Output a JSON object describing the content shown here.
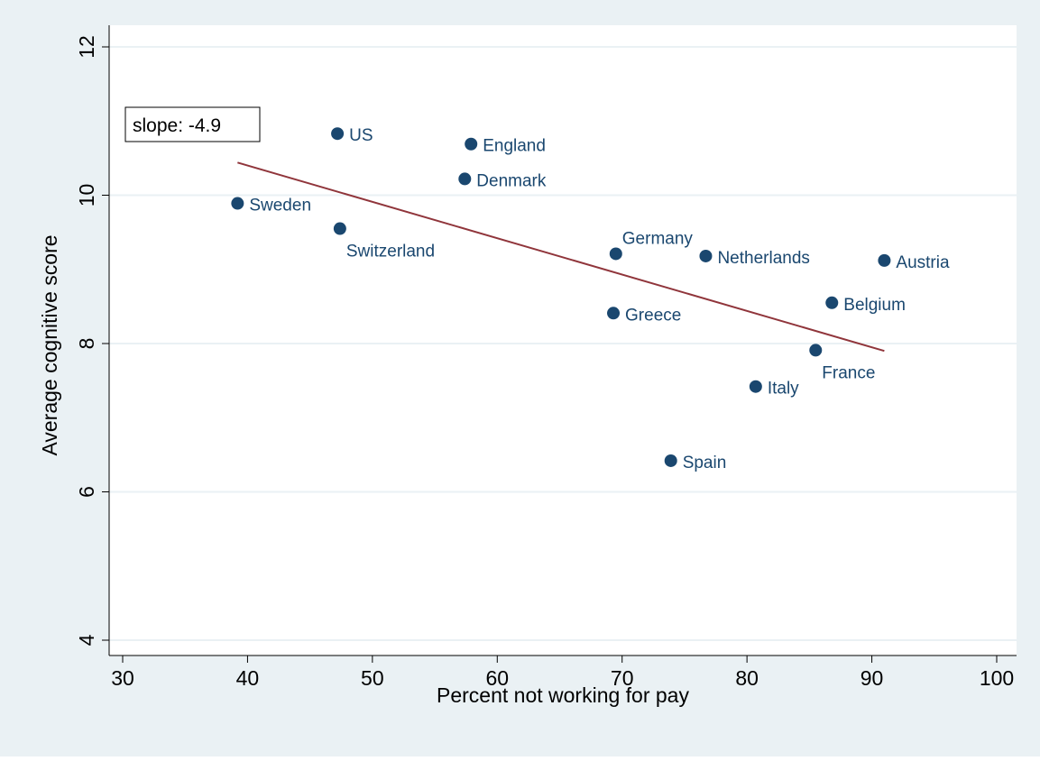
{
  "chart_data": {
    "type": "scatter",
    "title": "",
    "xlabel": "Percent not working for pay",
    "ylabel": "Average cognitive score",
    "xlim": [
      30,
      100
    ],
    "ylim": [
      4,
      12
    ],
    "xticks": [
      30,
      40,
      50,
      60,
      70,
      80,
      90,
      100
    ],
    "yticks": [
      4,
      6,
      8,
      10,
      12
    ],
    "grid": "horizontal",
    "annotation": "slope: -4.9",
    "points": [
      {
        "label": "US",
        "x": 47.2,
        "y": 10.83,
        "label_pos": "right"
      },
      {
        "label": "England",
        "x": 57.9,
        "y": 10.69,
        "label_pos": "right"
      },
      {
        "label": "Denmark",
        "x": 57.4,
        "y": 10.22,
        "label_pos": "right"
      },
      {
        "label": "Sweden",
        "x": 39.2,
        "y": 9.89,
        "label_pos": "right"
      },
      {
        "label": "Switzerland",
        "x": 47.4,
        "y": 9.55,
        "label_pos": "below"
      },
      {
        "label": "Germany",
        "x": 69.5,
        "y": 9.21,
        "label_pos": "above"
      },
      {
        "label": "Netherlands",
        "x": 76.7,
        "y": 9.18,
        "label_pos": "right"
      },
      {
        "label": "Austria",
        "x": 91.0,
        "y": 9.12,
        "label_pos": "right"
      },
      {
        "label": "Belgium",
        "x": 86.8,
        "y": 8.55,
        "label_pos": "right"
      },
      {
        "label": "Greece",
        "x": 69.3,
        "y": 8.41,
        "label_pos": "right"
      },
      {
        "label": "France",
        "x": 85.5,
        "y": 7.91,
        "label_pos": "below"
      },
      {
        "label": "Italy",
        "x": 80.7,
        "y": 7.42,
        "label_pos": "right"
      },
      {
        "label": "Spain",
        "x": 73.9,
        "y": 6.42,
        "label_pos": "right"
      }
    ],
    "fit_line": {
      "x": [
        39.2,
        91.0
      ],
      "y": [
        10.44,
        7.9
      ]
    },
    "colors": {
      "background": "#eaf1f4",
      "plot_bg": "#ffffff",
      "marker": "#1a476f",
      "label": "#1a476f",
      "fit_line": "#90353b",
      "grid": "#eaf1f4",
      "axis": "#000000"
    }
  }
}
